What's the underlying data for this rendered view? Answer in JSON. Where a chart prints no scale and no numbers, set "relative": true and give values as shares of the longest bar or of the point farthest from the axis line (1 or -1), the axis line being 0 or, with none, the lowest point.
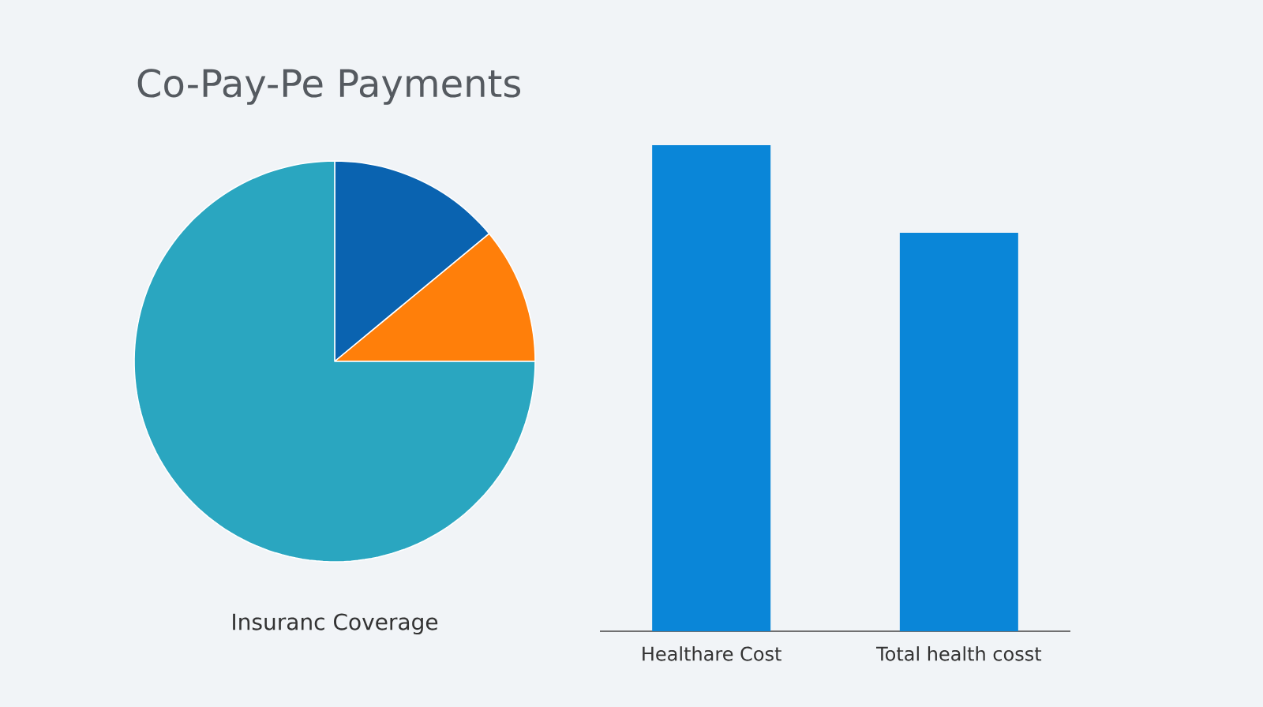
{
  "chart_data": [
    {
      "type": "pie",
      "title": "Co-Pay-Pe Payments",
      "categories": [
        null,
        null,
        null
      ],
      "values": [
        14,
        11,
        75
      ],
      "colors": [
        "#0a63b0",
        "#ff7f0a",
        "#2aa6c0"
      ],
      "annotations": [
        "Insuranc Coverage"
      ]
    },
    {
      "type": "bar",
      "categories": [
        "Healthare Cost",
        "Total health cosst"
      ],
      "values": [
        1,
        0.82
      ],
      "color": "#0a86d8",
      "relative": true
    }
  ]
}
